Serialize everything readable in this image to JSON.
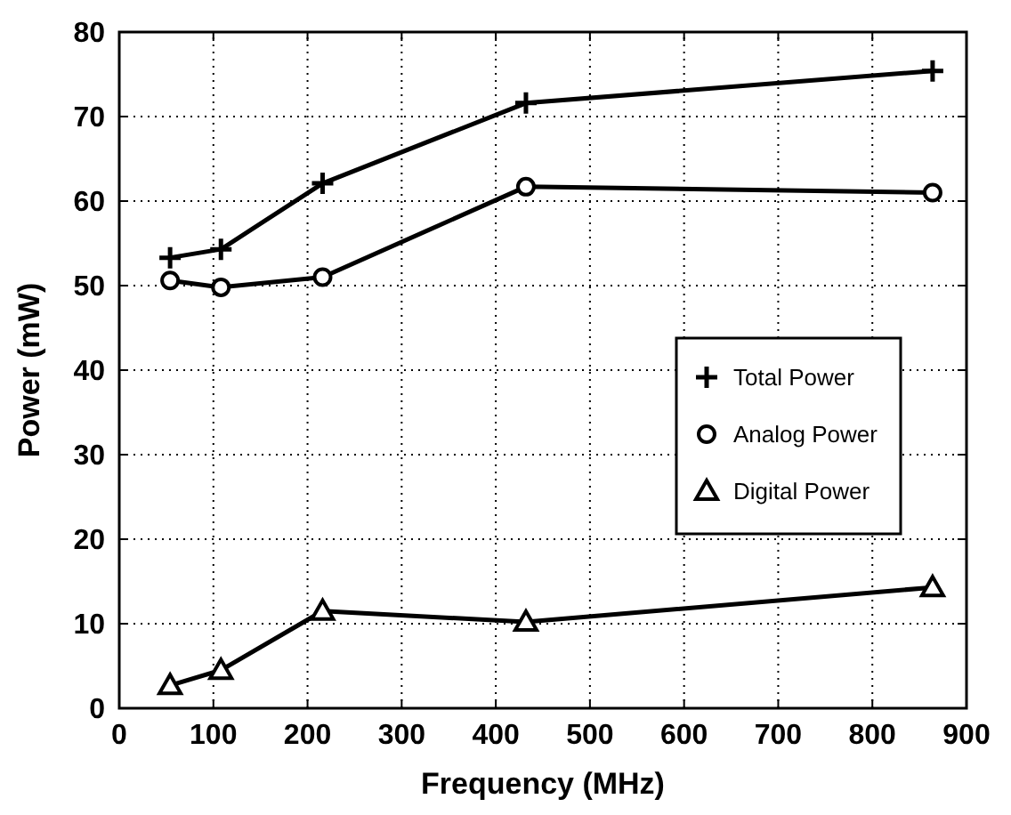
{
  "chart_data": {
    "type": "line",
    "xlabel": "Frequency (MHz)",
    "ylabel": "Power (mW)",
    "xlim": [
      0,
      900
    ],
    "xticks": [
      0,
      100,
      200,
      300,
      400,
      500,
      600,
      700,
      800,
      900
    ],
    "ylim": [
      0,
      80
    ],
    "yticks": [
      0,
      10,
      20,
      30,
      40,
      50,
      60,
      70,
      80
    ],
    "grid": true,
    "legend": "right",
    "x": [
      54,
      108,
      216,
      432,
      864
    ],
    "series": [
      {
        "name": "Total Power",
        "color": "#000000",
        "marker": "cross",
        "values": [
          53.3,
          54.3,
          62.1,
          71.6,
          75.4
        ]
      },
      {
        "name": "Analog Power",
        "color": "#000000",
        "marker": "circle",
        "values": [
          50.6,
          49.8,
          51.0,
          61.7,
          61.0
        ]
      },
      {
        "name": "Digital Power",
        "color": "#000000",
        "marker": "triangle",
        "values": [
          2.7,
          4.5,
          11.5,
          10.2,
          14.3
        ]
      }
    ]
  }
}
